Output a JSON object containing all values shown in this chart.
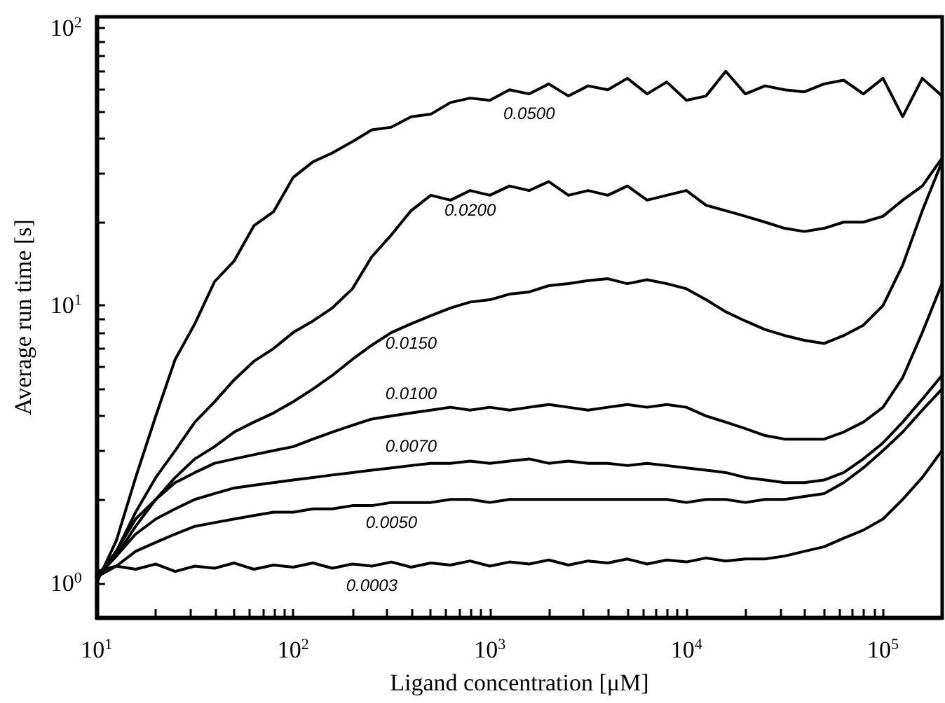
{
  "chart_data": {
    "type": "line",
    "xlabel": "Ligand concentration [μM]",
    "ylabel": "Average run time [s]",
    "log": "xy",
    "xlim": [
      10,
      200000
    ],
    "ylim": [
      0.75,
      110
    ],
    "xticks": [
      {
        "value": 10,
        "label": "10$^{1}$"
      },
      {
        "value": 20,
        "label": null
      },
      {
        "value": 30,
        "label": null
      },
      {
        "value": 40,
        "label": null
      },
      {
        "value": 50,
        "label": null
      },
      {
        "value": 60,
        "label": null
      },
      {
        "value": 70,
        "label": null
      },
      {
        "value": 80,
        "label": null
      },
      {
        "value": 90,
        "label": null
      },
      {
        "value": 100,
        "label": "10$^{2}$"
      },
      {
        "value": 200,
        "label": null
      },
      {
        "value": 300,
        "label": null
      },
      {
        "value": 400,
        "label": null
      },
      {
        "value": 500,
        "label": null
      },
      {
        "value": 600,
        "label": null
      },
      {
        "value": 700,
        "label": null
      },
      {
        "value": 800,
        "label": null
      },
      {
        "value": 900,
        "label": null
      },
      {
        "value": 1000,
        "label": "10$^{3}$"
      },
      {
        "value": 2000,
        "label": null
      },
      {
        "value": 3000,
        "label": null
      },
      {
        "value": 4000,
        "label": null
      },
      {
        "value": 5000,
        "label": null
      },
      {
        "value": 6000,
        "label": null
      },
      {
        "value": 7000,
        "label": null
      },
      {
        "value": 8000,
        "label": null
      },
      {
        "value": 9000,
        "label": null
      },
      {
        "value": 10000,
        "label": "10$^{4}$"
      },
      {
        "value": 20000,
        "label": null
      },
      {
        "value": 30000,
        "label": null
      },
      {
        "value": 40000,
        "label": null
      },
      {
        "value": 50000,
        "label": null
      },
      {
        "value": 60000,
        "label": null
      },
      {
        "value": 70000,
        "label": null
      },
      {
        "value": 80000,
        "label": null
      },
      {
        "value": 90000,
        "label": null
      },
      {
        "value": 100000,
        "label": "10$^{5}$"
      },
      {
        "value": 200000,
        "label": null
      }
    ],
    "yticks": [
      {
        "value": 1,
        "label": "10$^{0}$"
      },
      {
        "value": 2,
        "label": null
      },
      {
        "value": 3,
        "label": null
      },
      {
        "value": 4,
        "label": null
      },
      {
        "value": 5,
        "label": null
      },
      {
        "value": 6,
        "label": null
      },
      {
        "value": 7,
        "label": null
      },
      {
        "value": 8,
        "label": null
      },
      {
        "value": 9,
        "label": null
      },
      {
        "value": 10,
        "label": "10$^{1}$"
      },
      {
        "value": 20,
        "label": null
      },
      {
        "value": 30,
        "label": null
      },
      {
        "value": 40,
        "label": null
      },
      {
        "value": 50,
        "label": null
      },
      {
        "value": 60,
        "label": null
      },
      {
        "value": 70,
        "label": null
      },
      {
        "value": 80,
        "label": null
      },
      {
        "value": 90,
        "label": null
      },
      {
        "value": 100,
        "label": "10$^{2}$"
      }
    ],
    "grid": false,
    "legend": false,
    "marker": "none",
    "line_style": "solid",
    "x": [
      10,
      12.6,
      15.8,
      20,
      25.1,
      31.6,
      39.8,
      50.1,
      63.1,
      79.4,
      100,
      126,
      158,
      200,
      251,
      316,
      398,
      501,
      631,
      794,
      1000,
      1259,
      1585,
      1995,
      2512,
      3162,
      3981,
      5012,
      6310,
      7943,
      10000,
      12589,
      15849,
      19953,
      25119,
      31623,
      39811,
      50119,
      63096,
      79433,
      100000,
      125893,
      158489,
      199526
    ],
    "series": [
      {
        "name": "0.0500",
        "color": "#000000",
        "values": [
          1.0,
          1.42,
          2.4,
          4.0,
          6.4,
          8.6,
          12.2,
          14.5,
          19.4,
          21.8,
          29,
          33,
          35.5,
          39,
          43,
          44,
          48,
          49,
          54,
          56,
          55,
          60,
          58,
          63,
          57,
          62,
          60,
          66,
          58,
          64,
          55,
          57,
          70,
          58,
          62,
          60,
          59,
          63,
          65,
          58,
          66,
          48,
          66,
          57
        ]
      },
      {
        "name": "0.0200",
        "color": "#000000",
        "values": [
          1.05,
          1.3,
          1.8,
          2.4,
          3.0,
          3.8,
          4.5,
          5.4,
          6.3,
          7.0,
          8.0,
          8.8,
          9.8,
          11.5,
          15,
          18,
          22,
          25,
          24,
          26,
          25,
          27,
          26,
          28,
          25,
          26,
          25,
          27,
          24,
          25,
          26,
          23,
          22,
          21,
          20,
          19,
          18.5,
          19,
          20,
          20,
          21,
          24,
          27,
          34
        ]
      },
      {
        "name": "0.0150",
        "color": "#000000",
        "values": [
          1.05,
          1.25,
          1.6,
          2.0,
          2.4,
          2.8,
          3.1,
          3.5,
          3.8,
          4.1,
          4.5,
          5.0,
          5.6,
          6.4,
          7.2,
          8.0,
          8.6,
          9.2,
          9.8,
          10.3,
          10.5,
          11,
          11.2,
          11.8,
          12,
          12.3,
          12.5,
          12,
          12.4,
          12,
          11.5,
          10.5,
          9.5,
          8.8,
          8.2,
          7.8,
          7.5,
          7.3,
          7.8,
          8.5,
          10,
          14,
          22,
          33
        ]
      },
      {
        "name": "0.0100",
        "color": "#000000",
        "values": [
          1.05,
          1.3,
          1.7,
          2.0,
          2.3,
          2.5,
          2.7,
          2.8,
          2.9,
          3.0,
          3.1,
          3.3,
          3.5,
          3.7,
          3.9,
          4.0,
          4.1,
          4.2,
          4.3,
          4.2,
          4.3,
          4.2,
          4.3,
          4.4,
          4.3,
          4.2,
          4.3,
          4.4,
          4.3,
          4.4,
          4.3,
          4.0,
          3.8,
          3.6,
          3.4,
          3.3,
          3.3,
          3.3,
          3.5,
          3.8,
          4.3,
          5.5,
          8.0,
          12
        ]
      },
      {
        "name": "0.0070",
        "color": "#000000",
        "values": [
          1.05,
          1.25,
          1.5,
          1.7,
          1.85,
          2.0,
          2.1,
          2.2,
          2.25,
          2.3,
          2.35,
          2.4,
          2.45,
          2.5,
          2.55,
          2.6,
          2.65,
          2.7,
          2.7,
          2.75,
          2.7,
          2.75,
          2.8,
          2.7,
          2.75,
          2.7,
          2.7,
          2.65,
          2.7,
          2.65,
          2.6,
          2.55,
          2.5,
          2.4,
          2.35,
          2.3,
          2.3,
          2.35,
          2.5,
          2.8,
          3.2,
          3.8,
          4.6,
          5.6
        ]
      },
      {
        "name": "0.0050",
        "color": "#000000",
        "values": [
          1.05,
          1.15,
          1.3,
          1.4,
          1.5,
          1.6,
          1.65,
          1.7,
          1.75,
          1.8,
          1.8,
          1.85,
          1.85,
          1.9,
          1.9,
          1.95,
          1.95,
          1.95,
          2.0,
          2.0,
          1.95,
          2.0,
          2.0,
          2.0,
          2.0,
          2.0,
          2.0,
          2.0,
          2.0,
          2.0,
          1.95,
          2.0,
          2.0,
          1.95,
          2.0,
          2.0,
          2.05,
          2.1,
          2.3,
          2.6,
          3.0,
          3.5,
          4.2,
          5.0
        ]
      },
      {
        "name": "0.0003",
        "color": "#000000",
        "values": [
          1.1,
          1.15,
          1.12,
          1.17,
          1.1,
          1.15,
          1.13,
          1.18,
          1.12,
          1.16,
          1.14,
          1.18,
          1.13,
          1.17,
          1.15,
          1.19,
          1.14,
          1.18,
          1.16,
          1.2,
          1.15,
          1.19,
          1.17,
          1.21,
          1.16,
          1.2,
          1.18,
          1.22,
          1.17,
          1.21,
          1.19,
          1.23,
          1.2,
          1.22,
          1.22,
          1.25,
          1.3,
          1.35,
          1.45,
          1.55,
          1.7,
          2.0,
          2.4,
          3.0
        ]
      }
    ]
  }
}
